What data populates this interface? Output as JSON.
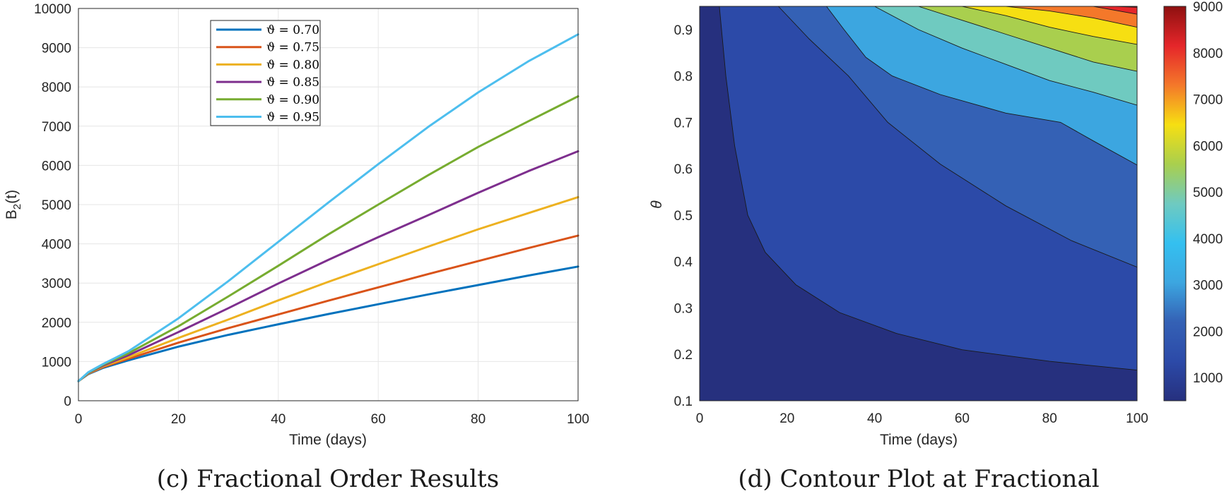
{
  "panel_c": {
    "caption": "(c) Fractional Order Results",
    "legend_prefix": "ϑ = ",
    "chart_data": {
      "type": "line",
      "title": "",
      "xlabel": "Time (days)",
      "ylabel_main": "B",
      "ylabel_sub": "2",
      "ylabel_tail": "(t)",
      "xlim": [
        0,
        100
      ],
      "ylim": [
        0,
        10000
      ],
      "xticks": [
        0,
        20,
        40,
        60,
        80,
        100
      ],
      "yticks": [
        0,
        1000,
        2000,
        3000,
        4000,
        5000,
        6000,
        7000,
        8000,
        9000,
        10000
      ],
      "grid": true,
      "legend_position": "top-center",
      "x": [
        0,
        2,
        5,
        10,
        20,
        30,
        40,
        50,
        60,
        70,
        80,
        90,
        100
      ],
      "series": [
        {
          "name": "0.70",
          "color": "#0072BD",
          "values": [
            500,
            680,
            840,
            1030,
            1380,
            1680,
            1950,
            2210,
            2460,
            2710,
            2950,
            3190,
            3420
          ]
        },
        {
          "name": "0.75",
          "color": "#D95319",
          "values": [
            500,
            690,
            860,
            1070,
            1480,
            1850,
            2200,
            2550,
            2890,
            3230,
            3560,
            3890,
            4210
          ]
        },
        {
          "name": "0.80",
          "color": "#EDB120",
          "values": [
            500,
            700,
            880,
            1110,
            1600,
            2070,
            2560,
            3030,
            3480,
            3930,
            4370,
            4780,
            5190
          ]
        },
        {
          "name": "0.85",
          "color": "#7E2F8E",
          "values": [
            500,
            710,
            900,
            1160,
            1750,
            2360,
            2990,
            3590,
            4170,
            4730,
            5300,
            5850,
            6360
          ]
        },
        {
          "name": "0.90",
          "color": "#77AC30",
          "values": [
            500,
            720,
            920,
            1210,
            1900,
            2660,
            3440,
            4240,
            5000,
            5750,
            6470,
            7120,
            7760
          ]
        },
        {
          "name": "0.95",
          "color": "#4DBEEE",
          "values": [
            500,
            730,
            940,
            1260,
            2100,
            3050,
            4050,
            5050,
            6030,
            6980,
            7860,
            8650,
            9340
          ]
        }
      ]
    }
  },
  "panel_d": {
    "caption": "(d) Contour Plot at Fractional",
    "chart_data": {
      "type": "heatmap",
      "title": "",
      "xlabel": "Time (days)",
      "ylabel": "θ",
      "xlim": [
        0,
        100
      ],
      "ylim": [
        0.1,
        0.95
      ],
      "xticks": [
        0,
        20,
        40,
        60,
        80,
        100
      ],
      "yticks": [
        0.1,
        0.2,
        0.3,
        0.4,
        0.5,
        0.6,
        0.7,
        0.8,
        0.9
      ],
      "colorbar_range": [
        500,
        9000
      ],
      "colorbar_ticks": [
        1000,
        2000,
        3000,
        4000,
        5000,
        6000,
        7000,
        8000,
        9000
      ],
      "level_colors": [
        "#26307E",
        "#2C4AA8",
        "#3461B5",
        "#3CA6E0",
        "#6FCAC0",
        "#A9CF4E",
        "#F6DF12",
        "#F4782A",
        "#E5262A",
        "#8E1010"
      ],
      "boundaries": [
        {
          "level": 1000,
          "points": [
            [
              4.5,
              0.95
            ],
            [
              6,
              0.8
            ],
            [
              8,
              0.65
            ],
            [
              11,
              0.5
            ],
            [
              15,
              0.42
            ],
            [
              22,
              0.35
            ],
            [
              32,
              0.29
            ],
            [
              45,
              0.245
            ],
            [
              60,
              0.21
            ],
            [
              80,
              0.185
            ],
            [
              100,
              0.166
            ]
          ]
        },
        {
          "level": 2000,
          "points": [
            [
              18,
              0.95
            ],
            [
              25,
              0.88
            ],
            [
              34,
              0.8
            ],
            [
              43,
              0.7
            ],
            [
              55,
              0.61
            ],
            [
              70,
              0.52
            ],
            [
              85,
              0.445
            ],
            [
              100,
              0.388
            ]
          ]
        },
        {
          "level": 3000,
          "points": [
            [
              29,
              0.95
            ],
            [
              33,
              0.9
            ],
            [
              38,
              0.84
            ],
            [
              44,
              0.8
            ],
            [
              55,
              0.76
            ],
            [
              70,
              0.72
            ],
            [
              82.5,
              0.7
            ],
            [
              90,
              0.66
            ],
            [
              100,
              0.608
            ]
          ]
        },
        {
          "level": 4000,
          "points": [
            [
              40,
              0.95
            ],
            [
              50,
              0.9
            ],
            [
              60,
              0.86
            ],
            [
              70,
              0.825
            ],
            [
              80,
              0.79
            ],
            [
              90,
              0.765
            ],
            [
              100,
              0.737
            ]
          ]
        },
        {
          "level": 5000,
          "points": [
            [
              50,
              0.95
            ],
            [
              60,
              0.92
            ],
            [
              70,
              0.89
            ],
            [
              80,
              0.86
            ],
            [
              90,
              0.83
            ],
            [
              100,
              0.81
            ]
          ]
        },
        {
          "level": 6000,
          "points": [
            [
              60,
              0.95
            ],
            [
              70,
              0.93
            ],
            [
              80,
              0.905
            ],
            [
              90,
              0.885
            ],
            [
              100,
              0.868
            ]
          ]
        },
        {
          "level": 7000,
          "points": [
            [
              70,
              0.95
            ],
            [
              80,
              0.94
            ],
            [
              90,
              0.925
            ],
            [
              100,
              0.905
            ]
          ]
        },
        {
          "level": 8000,
          "points": [
            [
              80,
              0.95
            ],
            [
              90,
              0.95
            ],
            [
              100,
              0.933
            ]
          ]
        },
        {
          "level": 9000,
          "points": [
            [
              95,
              0.95
            ],
            [
              100,
              0.948
            ]
          ]
        }
      ]
    }
  }
}
